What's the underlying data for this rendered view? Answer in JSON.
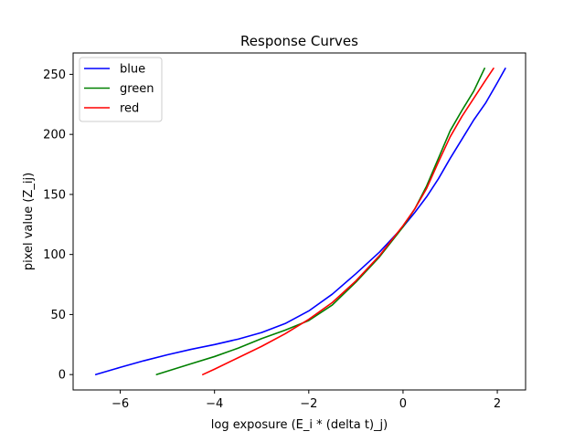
{
  "chart_data": {
    "type": "line",
    "title": "Response Curves",
    "xlabel": "log exposure (E_i * (delta t)_j)",
    "ylabel": "pixel value (Z_ij)",
    "xlim": [
      -7.0,
      2.6
    ],
    "ylim": [
      -12.8,
      267.8
    ],
    "xticks": [
      -6,
      -4,
      -2,
      0,
      2
    ],
    "yticks": [
      0,
      50,
      100,
      150,
      200,
      250
    ],
    "grid": false,
    "legend_position": "top-left",
    "series": [
      {
        "name": "blue",
        "color": "#0000ff",
        "points": [
          [
            -6.52,
            0
          ],
          [
            -6.0,
            6
          ],
          [
            -5.5,
            11.5
          ],
          [
            -5.0,
            16.5
          ],
          [
            -4.5,
            21
          ],
          [
            -4.0,
            25
          ],
          [
            -3.5,
            29.5
          ],
          [
            -3.0,
            35
          ],
          [
            -2.5,
            42.5
          ],
          [
            -2.0,
            53
          ],
          [
            -1.5,
            67
          ],
          [
            -1.0,
            84
          ],
          [
            -0.5,
            102
          ],
          [
            0.0,
            123
          ],
          [
            0.25,
            135
          ],
          [
            0.5,
            148
          ],
          [
            0.75,
            163
          ],
          [
            1.0,
            180
          ],
          [
            1.25,
            196
          ],
          [
            1.5,
            212
          ],
          [
            1.75,
            226
          ],
          [
            2.0,
            243
          ],
          [
            2.17,
            255
          ]
        ]
      },
      {
        "name": "green",
        "color": "#008000",
        "points": [
          [
            -5.23,
            0
          ],
          [
            -4.5,
            9
          ],
          [
            -4.0,
            15
          ],
          [
            -3.5,
            22
          ],
          [
            -3.0,
            30
          ],
          [
            -2.5,
            37
          ],
          [
            -2.0,
            45
          ],
          [
            -1.5,
            58
          ],
          [
            -1.0,
            77
          ],
          [
            -0.5,
            98
          ],
          [
            0.0,
            123
          ],
          [
            0.25,
            138
          ],
          [
            0.5,
            157
          ],
          [
            0.75,
            180
          ],
          [
            1.0,
            203
          ],
          [
            1.25,
            220
          ],
          [
            1.5,
            236
          ],
          [
            1.73,
            255
          ]
        ]
      },
      {
        "name": "red",
        "color": "#ff0000",
        "points": [
          [
            -4.25,
            0
          ],
          [
            -4.0,
            4.5
          ],
          [
            -3.5,
            14
          ],
          [
            -3.0,
            23.5
          ],
          [
            -2.5,
            34
          ],
          [
            -2.0,
            46
          ],
          [
            -1.5,
            60
          ],
          [
            -1.0,
            78
          ],
          [
            -0.5,
            99
          ],
          [
            0.0,
            124
          ],
          [
            0.25,
            138
          ],
          [
            0.5,
            155
          ],
          [
            0.75,
            177
          ],
          [
            1.0,
            198
          ],
          [
            1.25,
            215
          ],
          [
            1.5,
            230
          ],
          [
            1.75,
            245
          ],
          [
            1.92,
            255
          ]
        ]
      }
    ]
  }
}
